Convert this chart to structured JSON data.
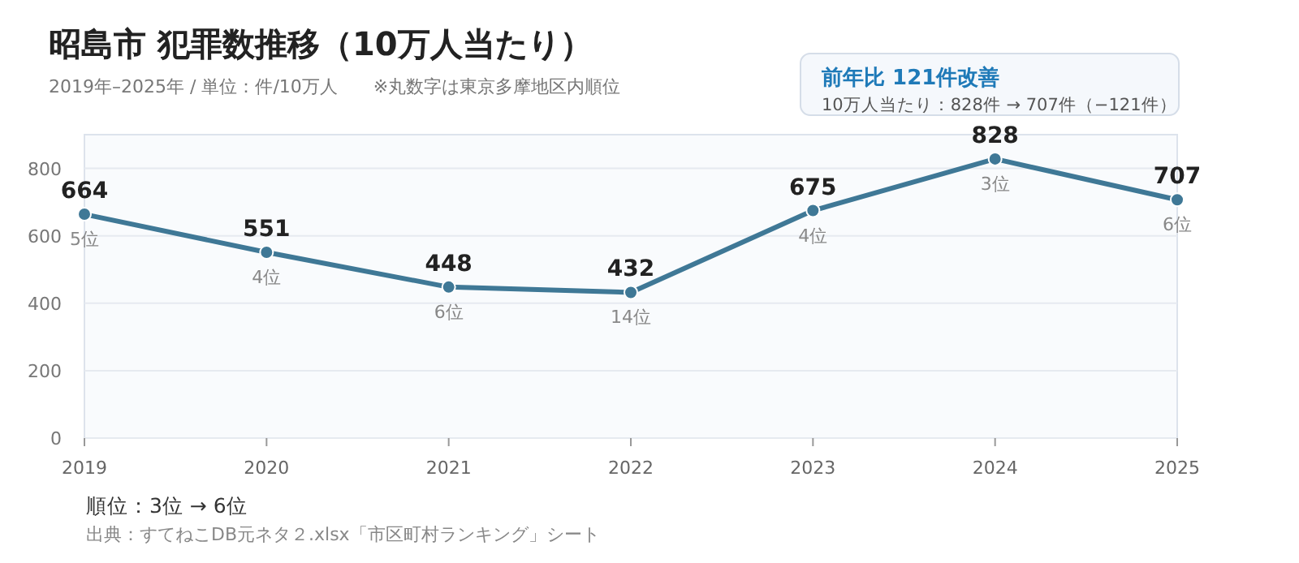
{
  "chart_data": {
    "type": "line",
    "title": "昭島市 犯罪数推移（10万人当たり）",
    "subtitle": "2019年–2025年 / 単位：件/10万人　　※丸数字は東京多摩地区内順位",
    "categories": [
      "2019",
      "2020",
      "2021",
      "2022",
      "2023",
      "2024",
      "2025"
    ],
    "series": [
      {
        "color": "#3f7896",
        "values": [
          664,
          551,
          448,
          432,
          675,
          828,
          707
        ]
      }
    ],
    "data_labels": true,
    "marker": "circle",
    "grid": "y",
    "ylim": [
      0,
      900
    ],
    "yticks": [
      0,
      200,
      400,
      600,
      800
    ],
    "annotations": [
      "前年比 121件改善",
      "10万人当たり：828件 → 707件（−121件）",
      "順位：3位 → 6位",
      "出典：すてねこDB元ネタ２.xlsx「市区町村ランキング」シート",
      {
        "text": "5位",
        "x": "2019",
        "y": 664
      },
      {
        "text": "4位",
        "x": "2020",
        "y": 551
      },
      {
        "text": "6位",
        "x": "2021",
        "y": 448
      },
      {
        "text": "14位",
        "x": "2022",
        "y": 432
      },
      {
        "text": "4位",
        "x": "2023",
        "y": 675
      },
      {
        "text": "3位",
        "x": "2024",
        "y": 828
      },
      {
        "text": "6位",
        "x": "2025",
        "y": 707
      }
    ]
  }
}
